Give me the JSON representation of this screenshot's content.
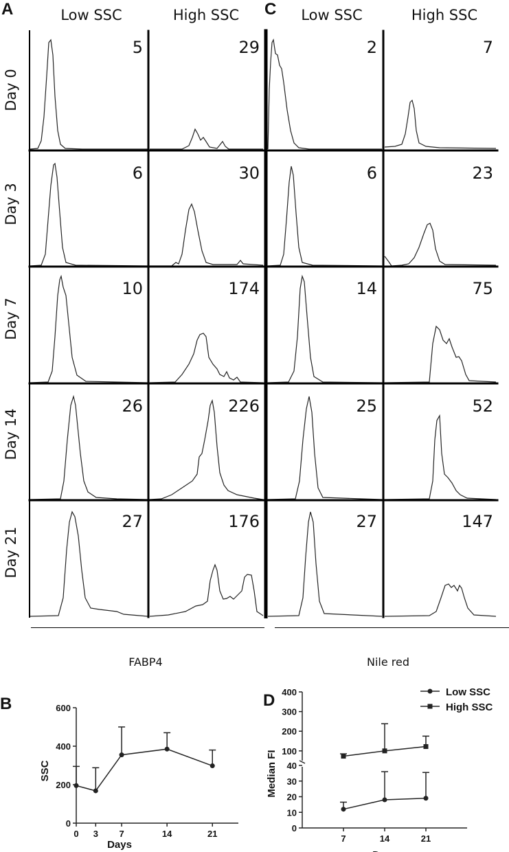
{
  "panel_a": {
    "letter_left": "A",
    "letter_right": "C",
    "col_headers": [
      "Low SSC",
      "High SSC",
      "Low SSC",
      "High SSC"
    ],
    "row_headers": [
      "Day 0",
      "Day 3",
      "Day 7",
      "Day 14",
      "Day 21"
    ],
    "fabp4_label": "FABP4",
    "nilered_label": "Nile red"
  },
  "chart_data": [
    {
      "type": "table",
      "title": "",
      "markers": [
        "FABP4",
        "Nile red"
      ],
      "columns": [
        "Low SSC",
        "High SSC",
        "Low SSC",
        "High SSC"
      ],
      "rows": [
        "Day 0",
        "Day 3",
        "Day 7",
        "Day 14",
        "Day 21"
      ],
      "values": [
        [
          5,
          29,
          2,
          7
        ],
        [
          6,
          30,
          6,
          23
        ],
        [
          10,
          174,
          14,
          75
        ],
        [
          26,
          226,
          25,
          52
        ],
        [
          27,
          176,
          27,
          147
        ]
      ]
    },
    {
      "type": "line",
      "panel": "B",
      "xlabel": "Days",
      "ylabel": "SSC",
      "x": [
        0,
        3,
        7,
        14,
        21
      ],
      "xticks": [
        0,
        3,
        7,
        14,
        21
      ],
      "yticks": [
        0,
        200,
        400,
        600
      ],
      "ylim": [
        0,
        600
      ],
      "xlim": [
        0,
        25
      ],
      "series": [
        {
          "values": [
            195,
            168,
            355,
            385,
            298
          ],
          "error_upper": [
            295,
            288,
            500,
            470,
            380
          ]
        }
      ]
    },
    {
      "type": "line",
      "panel": "D",
      "xlabel": "Days",
      "ylabel": "Median FI",
      "x": [
        7,
        14,
        21
      ],
      "xticks": [
        7,
        14,
        21
      ],
      "xlim": [
        0,
        28
      ],
      "upper_axis": {
        "yticks": [
          100,
          200,
          300,
          400
        ],
        "ylim": [
          40,
          400
        ]
      },
      "lower_axis": {
        "yticks": [
          0,
          10,
          20,
          30,
          40
        ],
        "ylim": [
          0,
          40
        ]
      },
      "legend_position": "top-right",
      "series": [
        {
          "name": "Low SSC",
          "marker": "circle",
          "values": [
            12,
            18,
            19
          ],
          "error_upper": [
            16.5,
            36,
            35.5
          ]
        },
        {
          "name": "High SSC",
          "marker": "square",
          "values": [
            73,
            100,
            122
          ],
          "error_upper": [
            85,
            238,
            175
          ]
        }
      ]
    }
  ]
}
